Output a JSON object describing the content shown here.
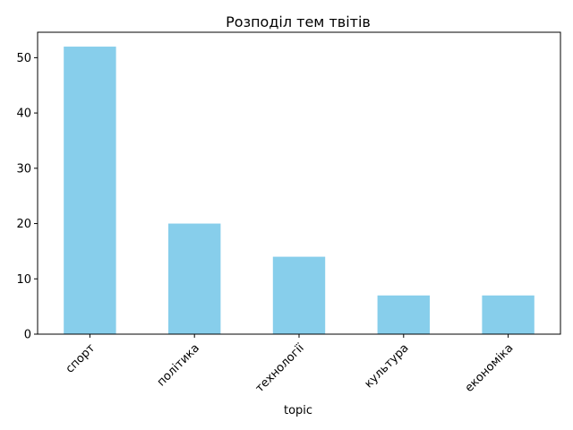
{
  "chart_data": {
    "type": "bar",
    "title": "Розподіл тем твітів",
    "xlabel": "topic",
    "ylabel": "",
    "categories": [
      "спорт",
      "політика",
      "технології",
      "культура",
      "економіка"
    ],
    "values": [
      52,
      20,
      14,
      7,
      7
    ],
    "ylim": [
      0,
      54.6
    ],
    "yticks": [
      0,
      10,
      20,
      30,
      40,
      50
    ],
    "grid": false,
    "legend": "none",
    "bar_color": "#87ceeb"
  }
}
